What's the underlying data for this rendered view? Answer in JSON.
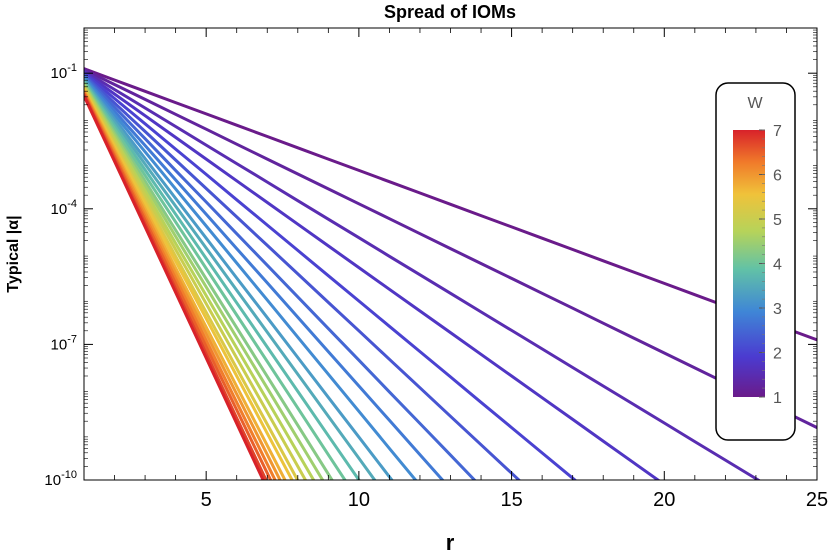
{
  "chart_data": {
    "type": "line",
    "title": "Spread of IOMs",
    "xlabel": "r",
    "ylabel": "Typical |α|",
    "yscale": "log",
    "xlim": [
      1,
      25
    ],
    "ylim": [
      1e-10,
      1
    ],
    "xticks": [
      "5",
      "10",
      "15",
      "20",
      "25"
    ],
    "yticks": [
      {
        "base": "10",
        "exp": "-1"
      },
      {
        "base": "10",
        "exp": "-4"
      },
      {
        "base": "10",
        "exp": "-7"
      },
      {
        "base": "10",
        "exp": "-10"
      }
    ],
    "grid": false,
    "legend": {
      "type": "colorbar",
      "title": "W",
      "placement": "right",
      "range": [
        1,
        7
      ],
      "ticks": [
        "1",
        "2",
        "3",
        "4",
        "5",
        "6",
        "7"
      ]
    },
    "series": [
      {
        "W": 1.0,
        "y0_log10": -0.9,
        "slope": -0.25
      },
      {
        "W": 1.25,
        "y0_log10": -0.92,
        "slope": -0.33
      },
      {
        "W": 1.5,
        "y0_log10": -0.95,
        "slope": -0.41
      },
      {
        "W": 1.75,
        "y0_log10": -0.98,
        "slope": -0.48
      },
      {
        "W": 2.0,
        "y0_log10": -1.0,
        "slope": -0.56
      },
      {
        "W": 2.25,
        "y0_log10": -1.03,
        "slope": -0.63
      },
      {
        "W": 2.5,
        "y0_log10": -1.05,
        "slope": -0.7
      },
      {
        "W": 2.75,
        "y0_log10": -1.08,
        "slope": -0.76
      },
      {
        "W": 3.0,
        "y0_log10": -1.1,
        "slope": -0.82
      },
      {
        "W": 3.25,
        "y0_log10": -1.13,
        "slope": -0.88
      },
      {
        "W": 3.5,
        "y0_log10": -1.15,
        "slope": -0.93
      },
      {
        "W": 3.75,
        "y0_log10": -1.18,
        "slope": -0.98
      },
      {
        "W": 4.0,
        "y0_log10": -1.2,
        "slope": -1.03
      },
      {
        "W": 4.25,
        "y0_log10": -1.23,
        "slope": -1.08
      },
      {
        "W": 4.5,
        "y0_log10": -1.25,
        "slope": -1.12
      },
      {
        "W": 4.75,
        "y0_log10": -1.28,
        "slope": -1.16
      },
      {
        "W": 5.0,
        "y0_log10": -1.3,
        "slope": -1.2
      },
      {
        "W": 5.25,
        "y0_log10": -1.33,
        "slope": -1.24
      },
      {
        "W": 5.5,
        "y0_log10": -1.35,
        "slope": -1.27
      },
      {
        "W": 5.75,
        "y0_log10": -1.38,
        "slope": -1.31
      },
      {
        "W": 6.0,
        "y0_log10": -1.4,
        "slope": -1.34
      },
      {
        "W": 6.25,
        "y0_log10": -1.43,
        "slope": -1.37
      },
      {
        "W": 6.5,
        "y0_log10": -1.45,
        "slope": -1.4
      },
      {
        "W": 6.75,
        "y0_log10": -1.48,
        "slope": -1.43
      },
      {
        "W": 7.0,
        "y0_log10": -1.5,
        "slope": -1.45
      }
    ]
  }
}
